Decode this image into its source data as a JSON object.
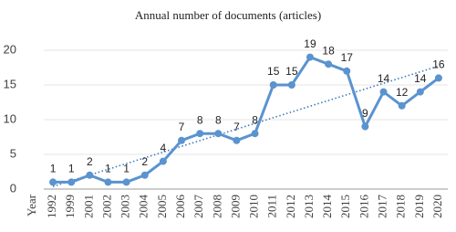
{
  "chart_data": {
    "type": "line",
    "title": "Annual number of documents (articles)",
    "x_label": "Year",
    "categories": [
      "1992",
      "1999",
      "2001",
      "2002",
      "2003",
      "2004",
      "2005",
      "2006",
      "2007",
      "2008",
      "2009",
      "2010",
      "2011",
      "2012",
      "2013",
      "2014",
      "2015",
      "2016",
      "2017",
      "2018",
      "2019",
      "2020"
    ],
    "values": [
      1,
      1,
      2,
      1,
      1,
      2,
      4,
      7,
      8,
      8,
      7,
      8,
      15,
      15,
      19,
      18,
      17,
      9,
      14,
      12,
      14,
      16
    ],
    "color": "#5a93cf",
    "trendline": true,
    "trend_color": "#3d7bbf",
    "ylim": [
      0,
      20
    ],
    "yticks": [
      0,
      5,
      10,
      15,
      20
    ],
    "grid": true
  }
}
